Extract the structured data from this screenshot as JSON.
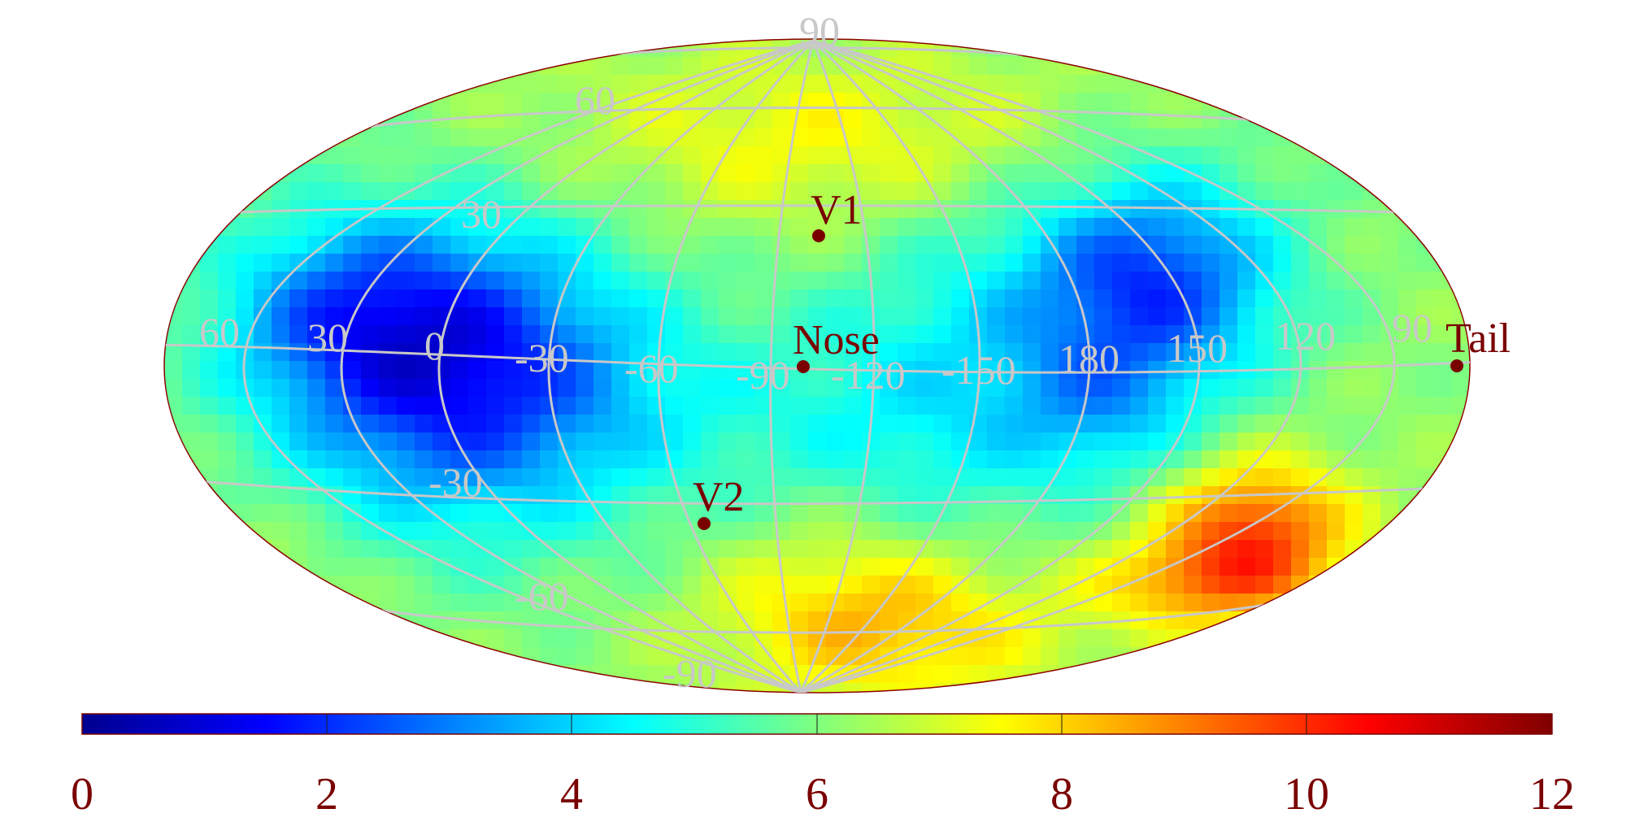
{
  "map": {
    "projection": "mollweide",
    "value_range": [
      0,
      12
    ],
    "colormap": "jet",
    "grid_color": "#c8c8c8",
    "label_color": "#7a0000",
    "latitude_labels": [
      "90",
      "60",
      "30",
      "-30",
      "-60",
      "-90"
    ],
    "longitude_labels": [
      "60",
      "30",
      "0",
      "-30",
      "-60",
      "-90",
      "-120",
      "-150",
      "180",
      "150",
      "120",
      "90"
    ],
    "markers": [
      {
        "label": "V1",
        "lon": -95,
        "lat": 35
      },
      {
        "label": "Nose",
        "lon": -105,
        "lat": 5
      },
      {
        "label": "Tail",
        "lon": 75,
        "lat": -5
      },
      {
        "label": "V2",
        "lon": -75,
        "lat": -34
      }
    ]
  },
  "colorbar": {
    "ticks": [
      "0",
      "2",
      "4",
      "6",
      "8",
      "10",
      "12"
    ],
    "tick_color": "#7a0000"
  }
}
